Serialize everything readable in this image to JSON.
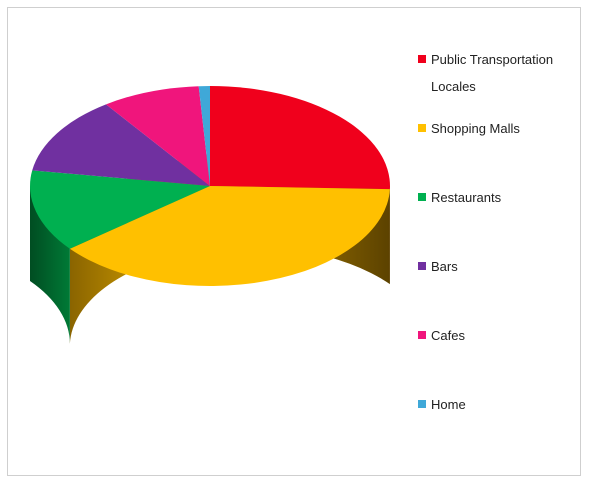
{
  "chart_data": {
    "type": "pie",
    "title": "",
    "style": "3d",
    "legend_placement": "right",
    "categories": [
      "Public Transportation Locales",
      "Shopping Malls",
      "Restaurants",
      "Bars",
      "Cafes",
      "Home"
    ],
    "values": [
      25.5,
      38.7,
      13.3,
      12.7,
      8.8,
      1.0
    ],
    "colors": [
      "#f0001c",
      "#ffc000",
      "#00b050",
      "#7030a0",
      "#f0157c",
      "#3fa8d8"
    ],
    "legend": [
      {
        "lines": [
          "Public Transportation",
          "Locales"
        ]
      },
      {
        "lines": [
          "Shopping Malls"
        ]
      },
      {
        "lines": [
          "Restaurants"
        ]
      },
      {
        "lines": [
          "Bars"
        ]
      },
      {
        "lines": [
          "Cafes"
        ]
      },
      {
        "lines": [
          "Home"
        ]
      }
    ]
  }
}
